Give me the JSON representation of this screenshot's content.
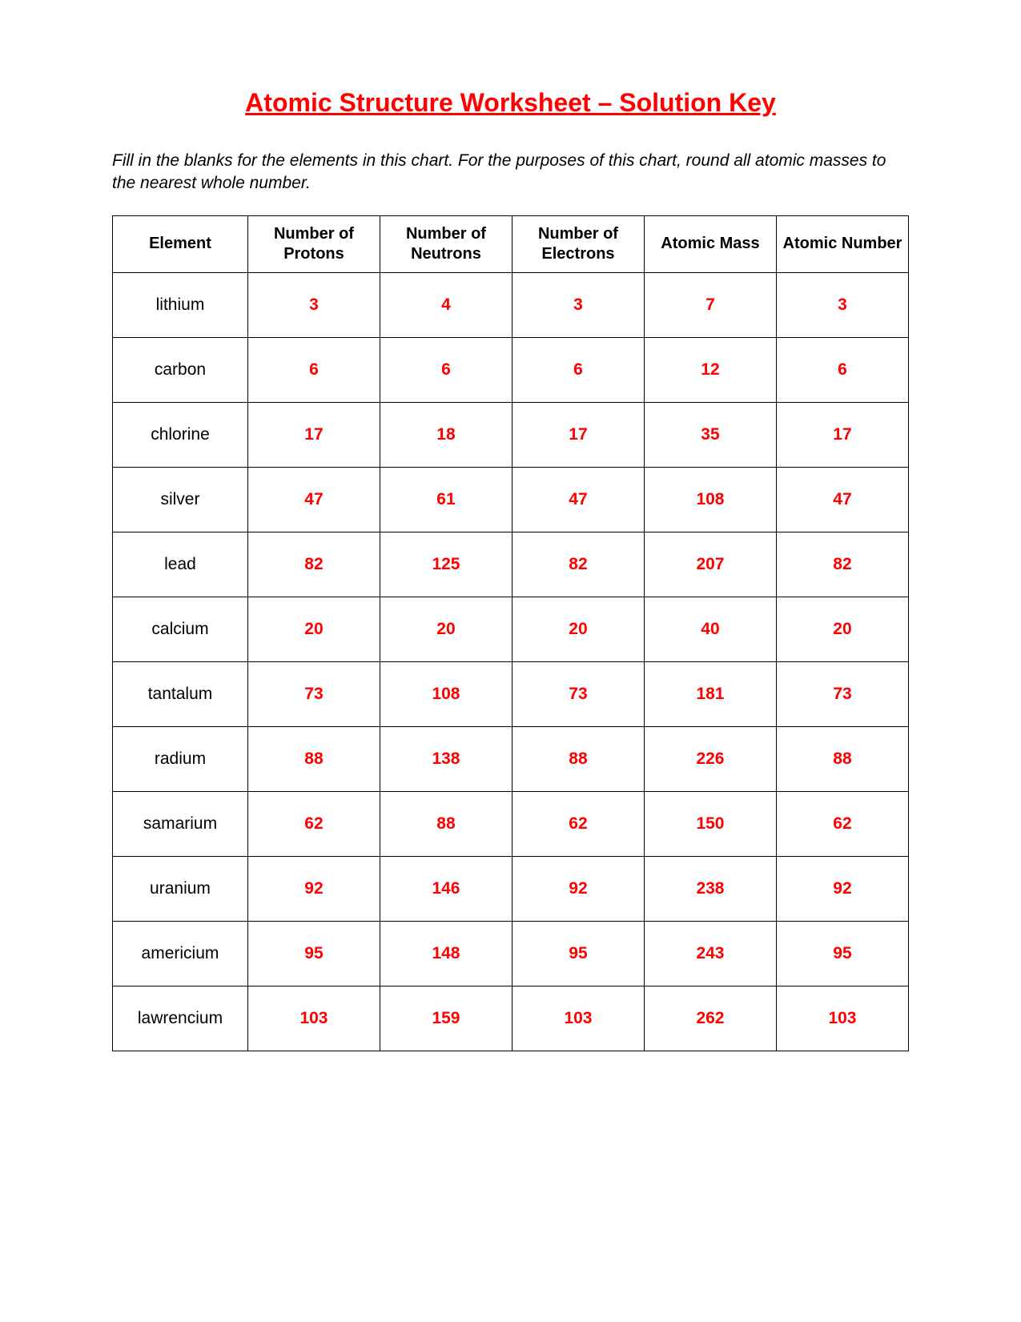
{
  "title": "Atomic Structure Worksheet – Solution Key",
  "instructions": "Fill in the blanks for the elements in this chart.  For the purposes of this chart, round all atomic masses to the nearest whole number.",
  "colors": {
    "title_color": "#ff0000",
    "value_color": "#ff0000",
    "text_color": "#000000",
    "border_color": "#000000",
    "background_color": "#ffffff"
  },
  "typography": {
    "title_fontsize": 32,
    "instructions_fontsize": 21,
    "header_fontsize": 20,
    "cell_fontsize": 21,
    "font_family": "Arial"
  },
  "table": {
    "columns": [
      "Element",
      "Number of Protons",
      "Number of Neutrons",
      "Number of Electrons",
      "Atomic Mass",
      "Atomic Number"
    ],
    "rows": [
      {
        "element": "lithium",
        "protons": "3",
        "neutrons": "4",
        "electrons": "3",
        "mass": "7",
        "number": "3"
      },
      {
        "element": "carbon",
        "protons": "6",
        "neutrons": "6",
        "electrons": "6",
        "mass": "12",
        "number": "6"
      },
      {
        "element": "chlorine",
        "protons": "17",
        "neutrons": "18",
        "electrons": "17",
        "mass": "35",
        "number": "17"
      },
      {
        "element": "silver",
        "protons": "47",
        "neutrons": "61",
        "electrons": "47",
        "mass": "108",
        "number": "47"
      },
      {
        "element": "lead",
        "protons": "82",
        "neutrons": "125",
        "electrons": "82",
        "mass": "207",
        "number": "82"
      },
      {
        "element": "calcium",
        "protons": "20",
        "neutrons": "20",
        "electrons": "20",
        "mass": "40",
        "number": "20"
      },
      {
        "element": "tantalum",
        "protons": "73",
        "neutrons": "108",
        "electrons": "73",
        "mass": "181",
        "number": "73"
      },
      {
        "element": "radium",
        "protons": "88",
        "neutrons": "138",
        "electrons": "88",
        "mass": "226",
        "number": "88"
      },
      {
        "element": "samarium",
        "protons": "62",
        "neutrons": "88",
        "electrons": "62",
        "mass": "150",
        "number": "62"
      },
      {
        "element": "uranium",
        "protons": "92",
        "neutrons": "146",
        "electrons": "92",
        "mass": "238",
        "number": "92"
      },
      {
        "element": "americium",
        "protons": "95",
        "neutrons": "148",
        "electrons": "95",
        "mass": "243",
        "number": "95"
      },
      {
        "element": "lawrencium",
        "protons": "103",
        "neutrons": "159",
        "electrons": "103",
        "mass": "262",
        "number": "103"
      }
    ]
  }
}
